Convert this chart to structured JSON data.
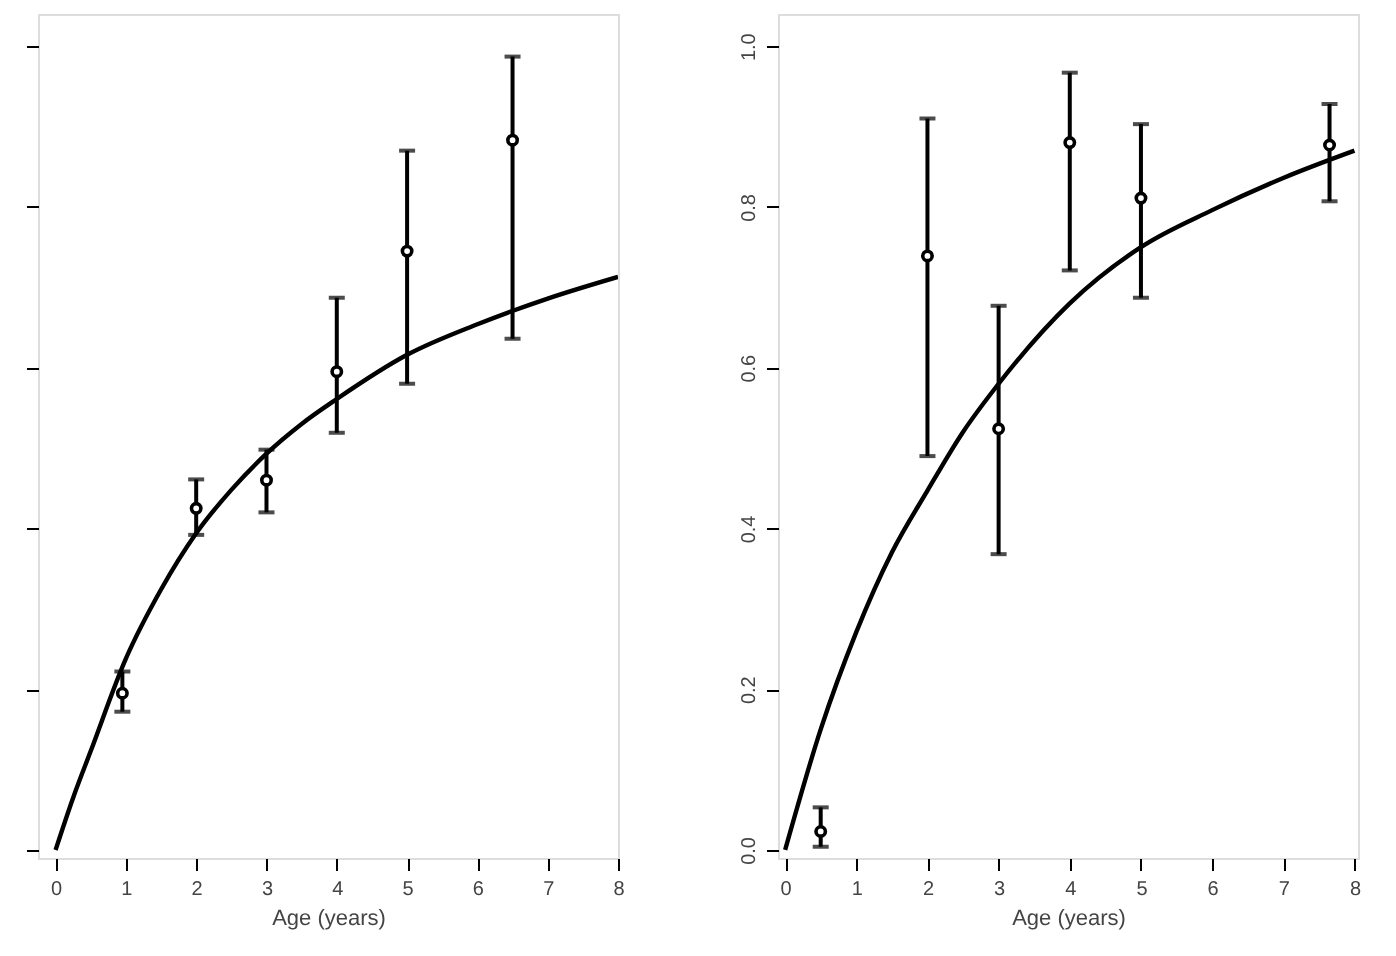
{
  "chart_data": [
    {
      "type": "scatter",
      "xlabel": "Age (years)",
      "xlim": [
        -0.25,
        8
      ],
      "xticks": [
        0,
        1,
        2,
        3,
        4,
        5,
        6,
        7,
        8
      ],
      "ylim": [
        -0.01,
        1.04
      ],
      "yticks": [
        0,
        0.2,
        0.4,
        0.6,
        0.8,
        1.0
      ],
      "tick_labels": "x",
      "grid": false,
      "legend": false,
      "series": [
        {
          "color": "#000000",
          "marker": "circle",
          "x": [
            0.95,
            2,
            3,
            4,
            5,
            6.5
          ],
          "values": [
            0.195,
            0.425,
            0.46,
            0.595,
            0.745,
            0.883
          ],
          "errors": [
            [
              0.172,
              0.222
            ],
            [
              0.392,
              0.461
            ],
            [
              0.42,
              0.498
            ],
            [
              0.519,
              0.687
            ],
            [
              0.58,
              0.87
            ],
            [
              0.636,
              0.987
            ]
          ]
        },
        {
          "type": "line",
          "color": "#000000",
          "line_style": "solid",
          "x": [
            0,
            0.25,
            0.5,
            1,
            1.5,
            2,
            2.5,
            3,
            3.5,
            4,
            5,
            6,
            7,
            8
          ],
          "values": [
            0,
            0.065,
            0.123,
            0.238,
            0.324,
            0.394,
            0.448,
            0.493,
            0.53,
            0.561,
            0.616,
            0.654,
            0.686,
            0.713
          ]
        }
      ]
    },
    {
      "type": "scatter",
      "xlabel": "Age (years)",
      "xlim": [
        -0.1,
        8.05
      ],
      "xticks": [
        0,
        1,
        2,
        3,
        4,
        5,
        6,
        7,
        8
      ],
      "ylim": [
        -0.01,
        1.04
      ],
      "yticks": [
        {
          "value": 0,
          "label": "0.0"
        },
        0.2,
        0.4,
        0.6,
        0.8,
        {
          "value": 1.0,
          "label": "1.0"
        }
      ],
      "grid": false,
      "legend": false,
      "series": [
        {
          "color": "#000000",
          "marker": "circle",
          "x": [
            0.5,
            2,
            3,
            4,
            5,
            7.65
          ],
          "values": [
            0.023,
            0.739,
            0.524,
            0.88,
            0.811,
            0.877
          ],
          "errors": [
            [
              0.004,
              0.053
            ],
            [
              0.49,
              0.91
            ],
            [
              0.368,
              0.677
            ],
            [
              0.721,
              0.967
            ],
            [
              0.687,
              0.903
            ],
            [
              0.807,
              0.928
            ]
          ]
        },
        {
          "type": "line",
          "color": "#000000",
          "line_style": "solid",
          "x": [
            0,
            0.5,
            1,
            1.5,
            2,
            2.5,
            3,
            4,
            5,
            6,
            7,
            8
          ],
          "values": [
            0,
            0.15,
            0.271,
            0.37,
            0.447,
            0.52,
            0.58,
            0.68,
            0.75,
            0.796,
            0.836,
            0.87
          ]
        }
      ]
    }
  ]
}
